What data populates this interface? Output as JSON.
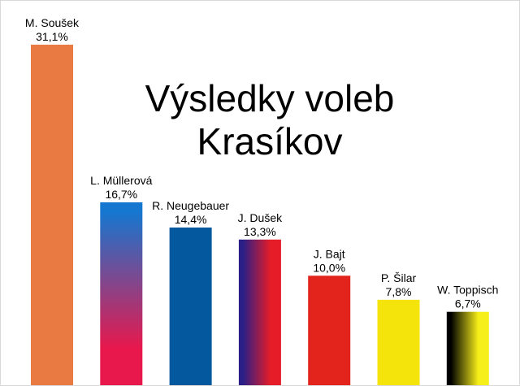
{
  "chart_data": {
    "type": "bar",
    "title": "Výsledky voleb",
    "subtitle": "Krasíkov",
    "categories": [
      "M. Soušek",
      "L. Müllerová",
      "R. Neugebauer",
      "J. Dušek",
      "J. Bajt",
      "P. Šilar",
      "W. Toppisch"
    ],
    "values": [
      31.1,
      16.7,
      14.4,
      13.3,
      10.0,
      7.8,
      6.7
    ],
    "value_labels": [
      "31,1%",
      "16,7%",
      "14,4%",
      "13,3%",
      "10,0%",
      "7,8%",
      "6,7%"
    ],
    "unit": "%",
    "ylim": [
      0,
      31.1
    ],
    "grid": false,
    "legend": "none",
    "bar_colors": [
      [
        "#e87a42",
        "#e87a42"
      ],
      [
        "#1577d0",
        "#e8184c"
      ],
      [
        "#04589e",
        "#04589e"
      ],
      [
        "#2a1f86",
        "#e61c28"
      ],
      [
        "#e2241d",
        "#e2241d"
      ],
      [
        "#f4e40c",
        "#f4e40c"
      ],
      [
        "#000000",
        "#f7ef1a"
      ]
    ],
    "gradient_direction": [
      "none",
      "vertical",
      "none",
      "horizontal",
      "none",
      "none",
      "horizontal"
    ],
    "frame_color": "#d8d8d8"
  }
}
